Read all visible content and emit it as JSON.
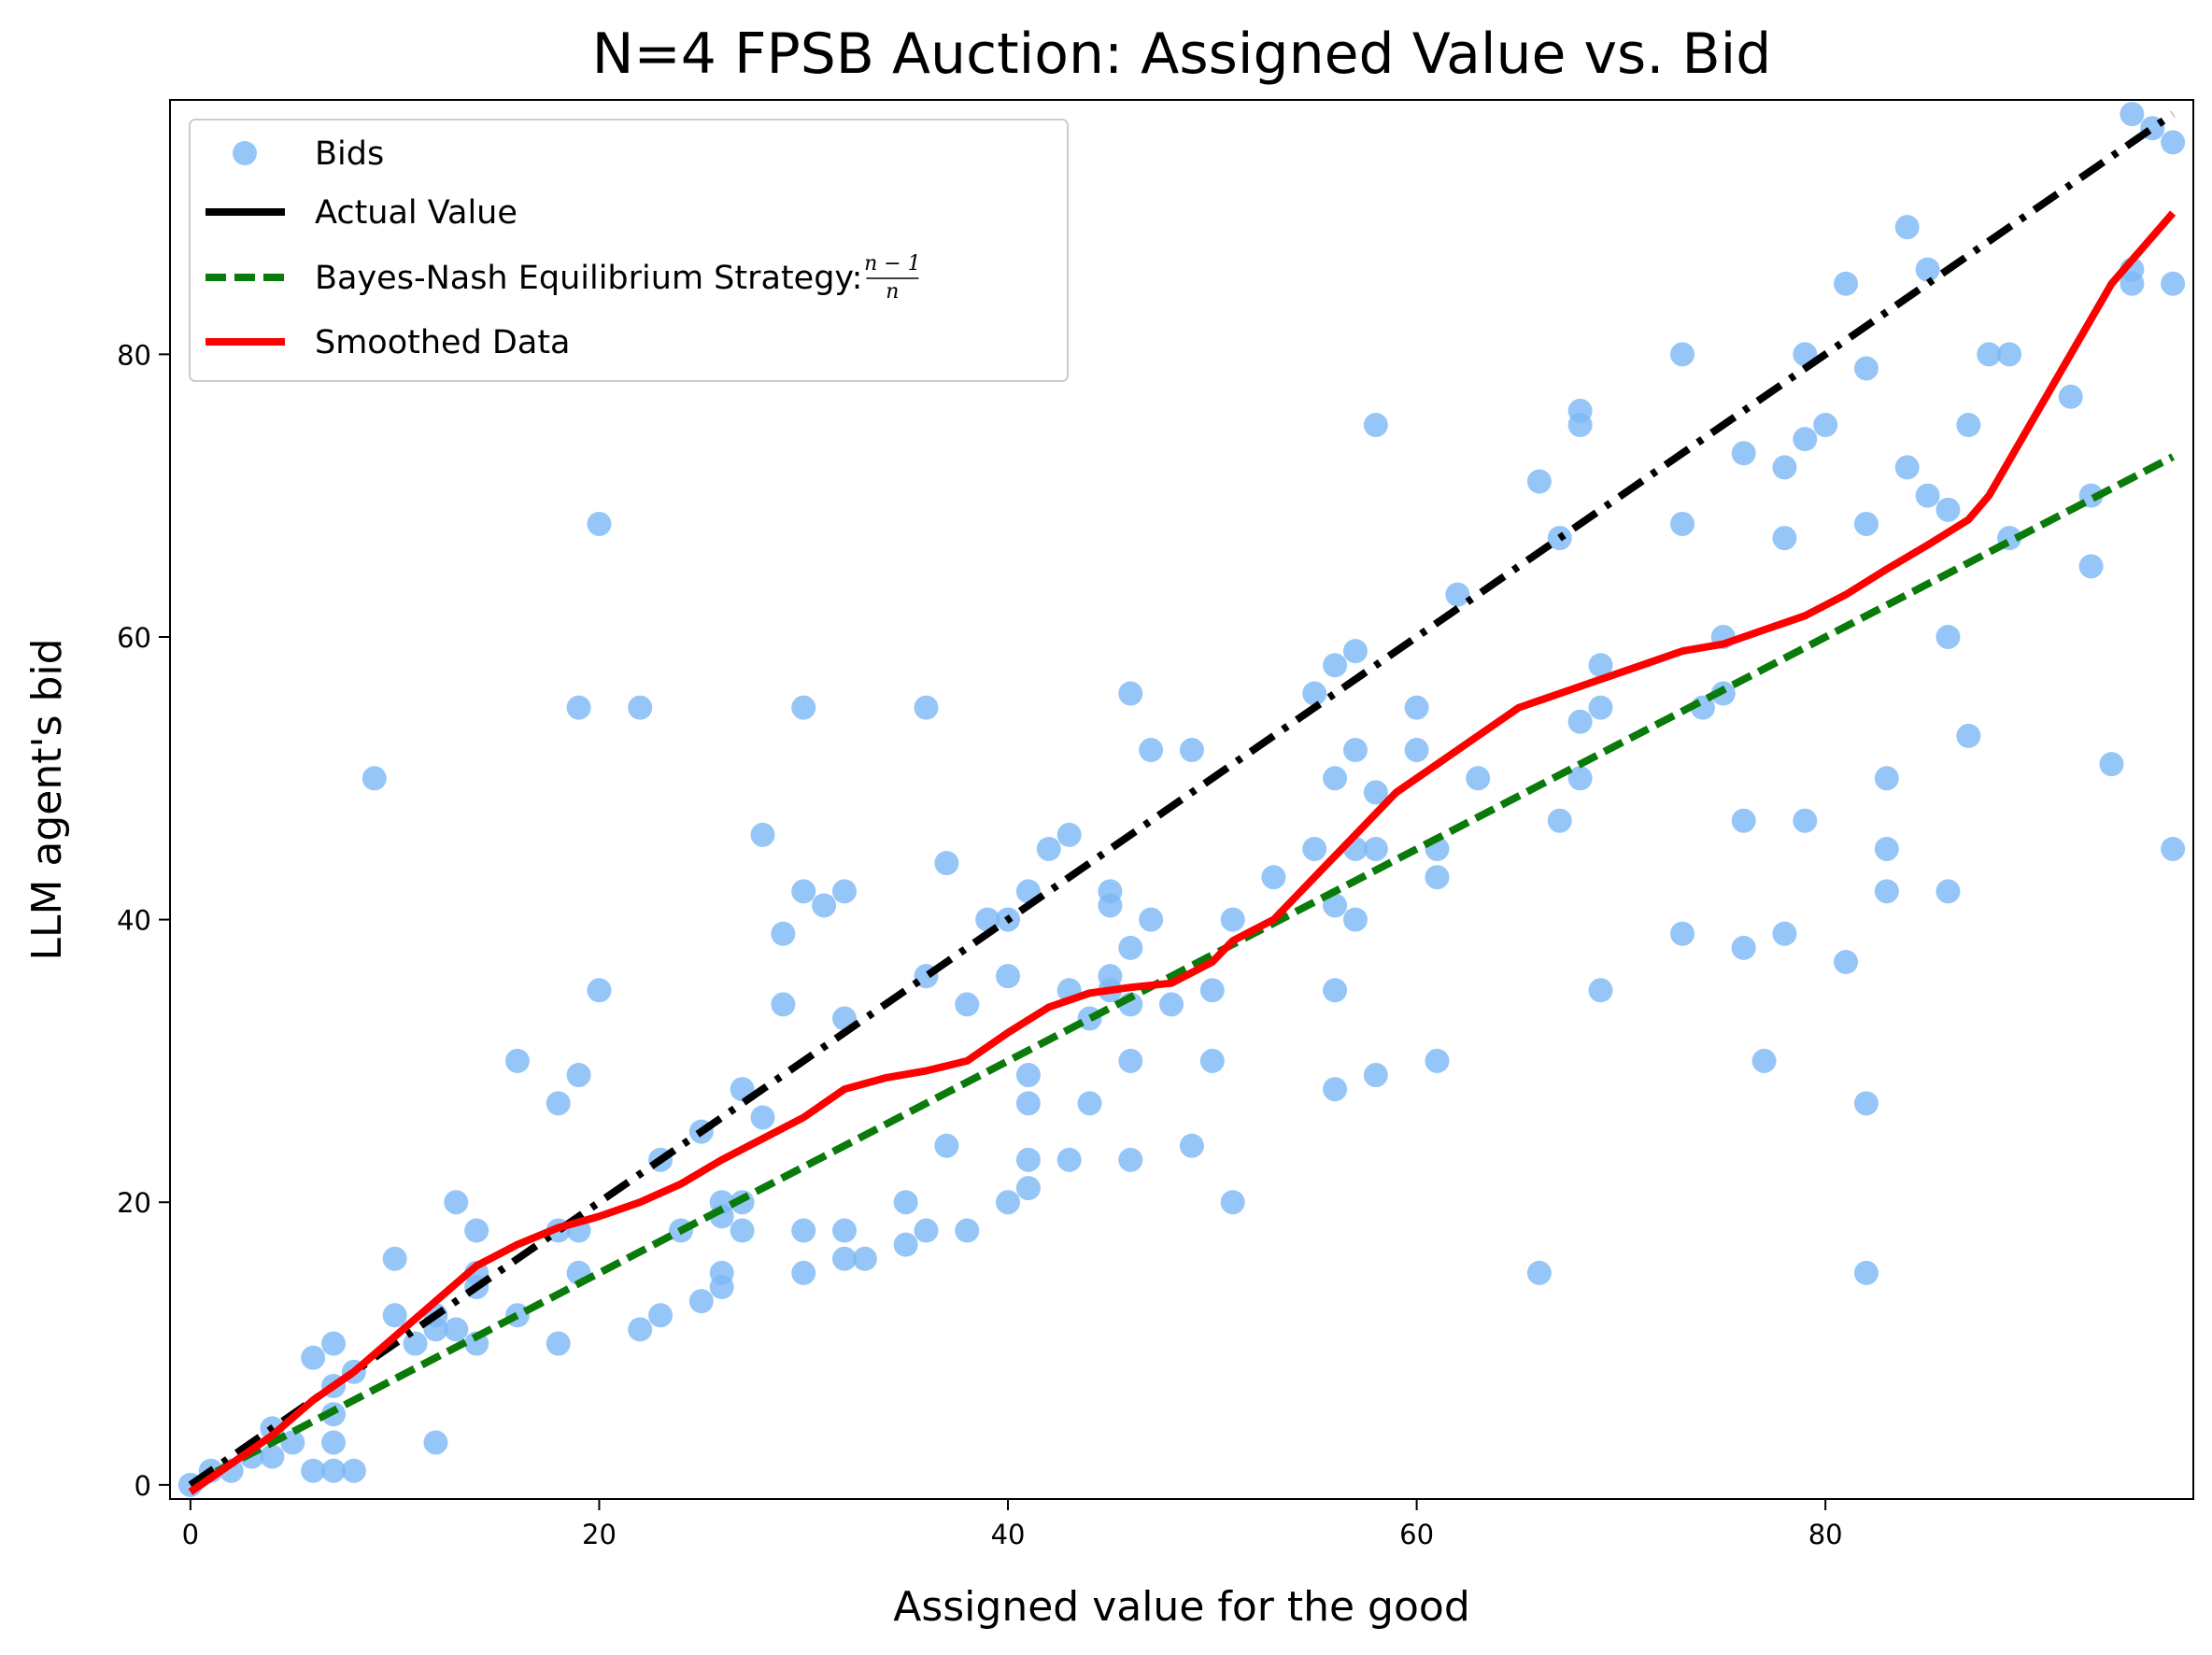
{
  "chart_data": {
    "type": "scatter",
    "title": "N=4 FPSB Auction: Assigned Value vs. Bid",
    "xlabel": "Assigned value for the good",
    "ylabel": "LLM agent's bid",
    "xlim": [
      -1,
      98
    ],
    "ylim": [
      -1,
      98
    ],
    "xticks": [
      0,
      20,
      40,
      60,
      80
    ],
    "yticks": [
      0,
      20,
      40,
      60,
      80
    ],
    "grid": false,
    "legend_position": "upper-left",
    "legend": [
      {
        "label": "Bids",
        "marker": "circle",
        "color": "#7ab8f5"
      },
      {
        "label": "Actual Value",
        "style": "dashdot",
        "color": "#000000"
      },
      {
        "label": "Bayes-Nash Equilibrium Strategy: ",
        "style": "dashed",
        "color": "#0a7a0a",
        "formula_num": "n − 1",
        "formula_den": "n"
      },
      {
        "label": "Smoothed Data",
        "style": "solid",
        "color": "#ff0000"
      }
    ],
    "series": [
      {
        "name": "Bids",
        "kind": "scatter",
        "color": "#7ab8f5",
        "points": [
          [
            0,
            0
          ],
          [
            1,
            1
          ],
          [
            2,
            1
          ],
          [
            3,
            2
          ],
          [
            4,
            2
          ],
          [
            4,
            4
          ],
          [
            5,
            3
          ],
          [
            6,
            9
          ],
          [
            6,
            1
          ],
          [
            7,
            10
          ],
          [
            7,
            7
          ],
          [
            7,
            5
          ],
          [
            7,
            3
          ],
          [
            7,
            1
          ],
          [
            8,
            8
          ],
          [
            8,
            1
          ],
          [
            9,
            50
          ],
          [
            10,
            16
          ],
          [
            10,
            12
          ],
          [
            11,
            10
          ],
          [
            12,
            12
          ],
          [
            12,
            11
          ],
          [
            12,
            3
          ],
          [
            13,
            20
          ],
          [
            13,
            11
          ],
          [
            14,
            18
          ],
          [
            14,
            15
          ],
          [
            14,
            14
          ],
          [
            14,
            10
          ],
          [
            16,
            30
          ],
          [
            16,
            12
          ],
          [
            18,
            27
          ],
          [
            18,
            18
          ],
          [
            18,
            10
          ],
          [
            19,
            55
          ],
          [
            19,
            29
          ],
          [
            19,
            18
          ],
          [
            19,
            15
          ],
          [
            20,
            68
          ],
          [
            20,
            35
          ],
          [
            22,
            55
          ],
          [
            22,
            11
          ],
          [
            23,
            23
          ],
          [
            23,
            12
          ],
          [
            24,
            18
          ],
          [
            25,
            25
          ],
          [
            25,
            13
          ],
          [
            26,
            20
          ],
          [
            26,
            19
          ],
          [
            26,
            15
          ],
          [
            26,
            14
          ],
          [
            27,
            28
          ],
          [
            27,
            20
          ],
          [
            27,
            18
          ],
          [
            28,
            46
          ],
          [
            28,
            26
          ],
          [
            29,
            39
          ],
          [
            29,
            34
          ],
          [
            30,
            55
          ],
          [
            30,
            42
          ],
          [
            30,
            18
          ],
          [
            30,
            15
          ],
          [
            31,
            41
          ],
          [
            32,
            42
          ],
          [
            32,
            33
          ],
          [
            32,
            18
          ],
          [
            32,
            16
          ],
          [
            33,
            16
          ],
          [
            35,
            20
          ],
          [
            35,
            17
          ],
          [
            36,
            55
          ],
          [
            36,
            36
          ],
          [
            36,
            18
          ],
          [
            37,
            44
          ],
          [
            37,
            24
          ],
          [
            38,
            34
          ],
          [
            38,
            18
          ],
          [
            39,
            40
          ],
          [
            40,
            40
          ],
          [
            40,
            36
          ],
          [
            40,
            20
          ],
          [
            41,
            42
          ],
          [
            41,
            29
          ],
          [
            41,
            27
          ],
          [
            41,
            23
          ],
          [
            41,
            21
          ],
          [
            42,
            45
          ],
          [
            43,
            46
          ],
          [
            43,
            35
          ],
          [
            43,
            23
          ],
          [
            44,
            33
          ],
          [
            44,
            27
          ],
          [
            45,
            42
          ],
          [
            45,
            41
          ],
          [
            45,
            36
          ],
          [
            45,
            35
          ],
          [
            46,
            56
          ],
          [
            46,
            38
          ],
          [
            46,
            34
          ],
          [
            46,
            30
          ],
          [
            46,
            23
          ],
          [
            47,
            52
          ],
          [
            47,
            40
          ],
          [
            48,
            34
          ],
          [
            49,
            52
          ],
          [
            49,
            24
          ],
          [
            50,
            35
          ],
          [
            50,
            30
          ],
          [
            51,
            40
          ],
          [
            51,
            20
          ],
          [
            53,
            43
          ],
          [
            55,
            56
          ],
          [
            55,
            45
          ],
          [
            56,
            58
          ],
          [
            56,
            50
          ],
          [
            56,
            41
          ],
          [
            56,
            35
          ],
          [
            56,
            28
          ],
          [
            57,
            59
          ],
          [
            57,
            52
          ],
          [
            57,
            45
          ],
          [
            57,
            40
          ],
          [
            58,
            75
          ],
          [
            58,
            49
          ],
          [
            58,
            45
          ],
          [
            58,
            29
          ],
          [
            60,
            55
          ],
          [
            60,
            52
          ],
          [
            61,
            45
          ],
          [
            61,
            43
          ],
          [
            61,
            30
          ],
          [
            62,
            63
          ],
          [
            63,
            50
          ],
          [
            66,
            71
          ],
          [
            66,
            15
          ],
          [
            67,
            67
          ],
          [
            67,
            47
          ],
          [
            68,
            76
          ],
          [
            68,
            75
          ],
          [
            68,
            54
          ],
          [
            68,
            50
          ],
          [
            69,
            58
          ],
          [
            69,
            55
          ],
          [
            69,
            35
          ],
          [
            73,
            80
          ],
          [
            73,
            68
          ],
          [
            73,
            39
          ],
          [
            74,
            55
          ],
          [
            75,
            60
          ],
          [
            75,
            56
          ],
          [
            76,
            73
          ],
          [
            76,
            47
          ],
          [
            76,
            38
          ],
          [
            77,
            30
          ],
          [
            78,
            72
          ],
          [
            78,
            67
          ],
          [
            78,
            39
          ],
          [
            79,
            80
          ],
          [
            79,
            74
          ],
          [
            79,
            47
          ],
          [
            80,
            75
          ],
          [
            81,
            85
          ],
          [
            81,
            37
          ],
          [
            82,
            79
          ],
          [
            82,
            68
          ],
          [
            82,
            27
          ],
          [
            82,
            15
          ],
          [
            83,
            50
          ],
          [
            83,
            45
          ],
          [
            83,
            42
          ],
          [
            84,
            89
          ],
          [
            84,
            72
          ],
          [
            85,
            86
          ],
          [
            85,
            70
          ],
          [
            86,
            69
          ],
          [
            86,
            60
          ],
          [
            86,
            42
          ],
          [
            87,
            75
          ],
          [
            87,
            53
          ],
          [
            88,
            80
          ],
          [
            89,
            80
          ],
          [
            89,
            67
          ],
          [
            92,
            77
          ],
          [
            93,
            70
          ],
          [
            93,
            65
          ],
          [
            94,
            51
          ],
          [
            95,
            97
          ],
          [
            95,
            86
          ],
          [
            95,
            85
          ],
          [
            96,
            96
          ],
          [
            97,
            95
          ],
          [
            97,
            85
          ],
          [
            97,
            45
          ]
        ]
      },
      {
        "name": "Actual Value",
        "kind": "line",
        "style": "dashdot",
        "color": "#000000",
        "points": [
          [
            0,
            0
          ],
          [
            97,
            97
          ]
        ]
      },
      {
        "name": "Bayes-Nash Equilibrium Strategy",
        "kind": "line",
        "style": "dashed",
        "color": "#0a7a0a",
        "points": [
          [
            0,
            0
          ],
          [
            97,
            72.75
          ]
        ]
      },
      {
        "name": "Smoothed Data",
        "kind": "line",
        "style": "solid",
        "color": "#ff0000",
        "points": [
          [
            0,
            -0.5
          ],
          [
            2,
            1.5
          ],
          [
            4,
            3.5
          ],
          [
            6,
            6
          ],
          [
            8,
            8
          ],
          [
            10,
            10.5
          ],
          [
            12,
            13
          ],
          [
            14,
            15.5
          ],
          [
            16,
            17
          ],
          [
            18,
            18.2
          ],
          [
            20,
            19
          ],
          [
            22,
            20
          ],
          [
            24,
            21.3
          ],
          [
            26,
            23
          ],
          [
            28,
            24.5
          ],
          [
            30,
            26
          ],
          [
            32,
            28
          ],
          [
            34,
            28.8
          ],
          [
            36,
            29.3
          ],
          [
            38,
            30
          ],
          [
            40,
            32
          ],
          [
            42,
            33.8
          ],
          [
            44,
            34.8
          ],
          [
            46,
            35.2
          ],
          [
            48,
            35.5
          ],
          [
            50,
            37
          ],
          [
            51,
            38.5
          ],
          [
            53,
            40
          ],
          [
            55,
            43
          ],
          [
            57,
            46
          ],
          [
            59,
            49
          ],
          [
            61,
            51
          ],
          [
            63,
            53
          ],
          [
            65,
            55
          ],
          [
            67,
            56
          ],
          [
            69,
            57
          ],
          [
            71,
            58
          ],
          [
            73,
            59
          ],
          [
            75,
            59.5
          ],
          [
            77,
            60.5
          ],
          [
            79,
            61.5
          ],
          [
            81,
            63
          ],
          [
            83,
            64.8
          ],
          [
            85,
            66.5
          ],
          [
            87,
            68.3
          ],
          [
            88,
            70
          ],
          [
            90,
            75
          ],
          [
            92,
            80
          ],
          [
            94,
            85
          ],
          [
            97,
            90
          ]
        ]
      }
    ]
  }
}
